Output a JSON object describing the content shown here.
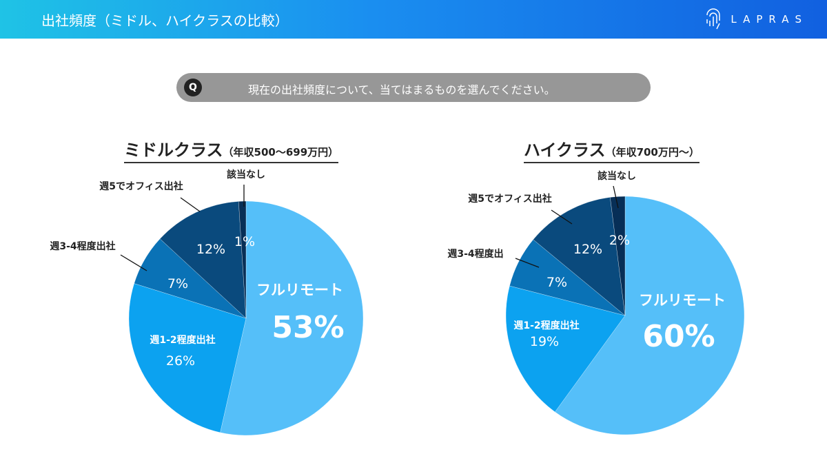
{
  "header": {
    "title": "出社頻度（ミドル、ハイクラスの比較）",
    "logo_text": "LAPRAS"
  },
  "question": {
    "badge": "Q",
    "text": "現在の出社頻度について、当てはまるものを選んでください。"
  },
  "colors": [
    "#55bff9",
    "#0ca2f0",
    "#0a72b6",
    "#0a4a7d",
    "#072f57"
  ],
  "chart_data": [
    {
      "type": "pie",
      "title": "ミドルクラス",
      "subtitle": "（年収500〜699万円）",
      "categories": [
        "フルリモート",
        "週1-2程度出社",
        "週3-4程度出社",
        "週5でオフィス出社",
        "該当なし"
      ],
      "values": [
        53,
        26,
        7,
        12,
        1
      ],
      "labels": [
        "53%",
        "26%",
        "7%",
        "12%",
        "1%"
      ]
    },
    {
      "type": "pie",
      "title": "ハイクラス",
      "subtitle": "（年収700万円〜）",
      "categories": [
        "フルリモート",
        "週1-2程度出社",
        "週3-4程度出",
        "週5でオフィス出社",
        "該当なし"
      ],
      "values": [
        60,
        19,
        7,
        12,
        2
      ],
      "labels": [
        "60%",
        "19%",
        "7%",
        "12%",
        "2%"
      ]
    }
  ]
}
